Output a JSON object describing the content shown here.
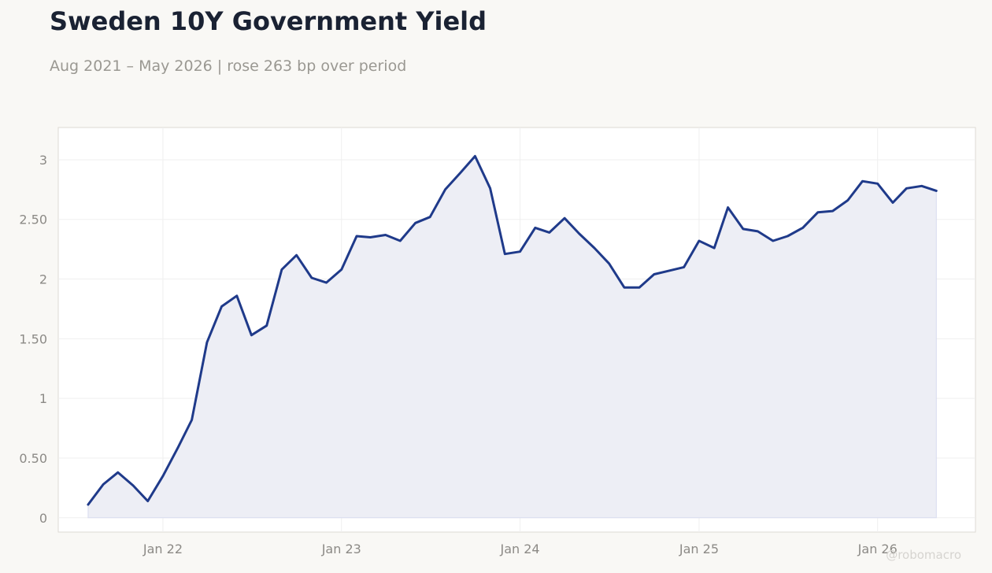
{
  "header": {
    "title": "Sweden 10Y Government Yield",
    "subtitle": "Aug 2021 – May 2026 | rose 263 bp over period"
  },
  "watermark": "@robomacro",
  "colors": {
    "line": "#1f3a8a",
    "fill": "#edeef5",
    "background": "#f9f8f5",
    "plot_background": "#ffffff",
    "grid": "#efefef"
  },
  "chart_data": {
    "type": "area",
    "title": "Sweden 10Y Government Yield",
    "subtitle": "Aug 2021 – May 2026 | rose 263 bp over period",
    "xlabel": "",
    "ylabel": "",
    "ylim": [
      -0.12,
      3.27
    ],
    "xlim": [
      "2021-06-01",
      "2026-07-20"
    ],
    "grid": true,
    "legend": "none",
    "x_ticks": [
      {
        "date": "2022-01-01",
        "label": "Jan 22"
      },
      {
        "date": "2023-01-01",
        "label": "Jan 23"
      },
      {
        "date": "2024-01-01",
        "label": "Jan 24"
      },
      {
        "date": "2025-01-01",
        "label": "Jan 25"
      },
      {
        "date": "2026-01-01",
        "label": "Jan 26"
      }
    ],
    "y_ticks": [
      {
        "value": 0,
        "label": "0"
      },
      {
        "value": 0.5,
        "label": "0.50"
      },
      {
        "value": 1,
        "label": "1"
      },
      {
        "value": 1.5,
        "label": "1.50"
      },
      {
        "value": 2,
        "label": "2"
      },
      {
        "value": 2.5,
        "label": "2.50"
      },
      {
        "value": 3,
        "label": "3"
      }
    ],
    "x": [
      "2021-08",
      "2021-09",
      "2021-10",
      "2021-11",
      "2021-12",
      "2022-01",
      "2022-02",
      "2022-03",
      "2022-04",
      "2022-05",
      "2022-06",
      "2022-07",
      "2022-08",
      "2022-09",
      "2022-10",
      "2022-11",
      "2022-12",
      "2023-01",
      "2023-02",
      "2023-03",
      "2023-04",
      "2023-05",
      "2023-06",
      "2023-07",
      "2023-08",
      "2023-09",
      "2023-10",
      "2023-11",
      "2023-12",
      "2024-01",
      "2024-02",
      "2024-03",
      "2024-04",
      "2024-05",
      "2024-06",
      "2024-07",
      "2024-08",
      "2024-09",
      "2024-10",
      "2024-11",
      "2024-12",
      "2025-01",
      "2025-02",
      "2025-03",
      "2025-04",
      "2025-05",
      "2025-06",
      "2025-07",
      "2025-08",
      "2025-09",
      "2025-10",
      "2025-11",
      "2025-12",
      "2026-01",
      "2026-02",
      "2026-03",
      "2026-04",
      "2026-05"
    ],
    "series": [
      {
        "values": [
          0.11,
          0.28,
          0.38,
          0.27,
          0.14,
          0.35,
          0.59,
          0.82,
          1.47,
          1.77,
          1.86,
          1.53,
          1.61,
          2.08,
          2.2,
          2.01,
          1.97,
          2.08,
          2.36,
          2.35,
          2.37,
          2.32,
          2.47,
          2.52,
          2.75,
          2.89,
          3.03,
          2.76,
          2.21,
          2.23,
          2.43,
          2.39,
          2.51,
          2.38,
          2.26,
          2.13,
          1.93,
          1.93,
          2.04,
          2.07,
          2.1,
          2.32,
          2.26,
          2.6,
          2.42,
          2.4,
          2.32,
          2.36,
          2.43,
          2.56,
          2.57,
          2.66,
          2.82,
          2.8,
          2.64,
          2.76,
          2.78,
          2.74
        ]
      }
    ]
  }
}
